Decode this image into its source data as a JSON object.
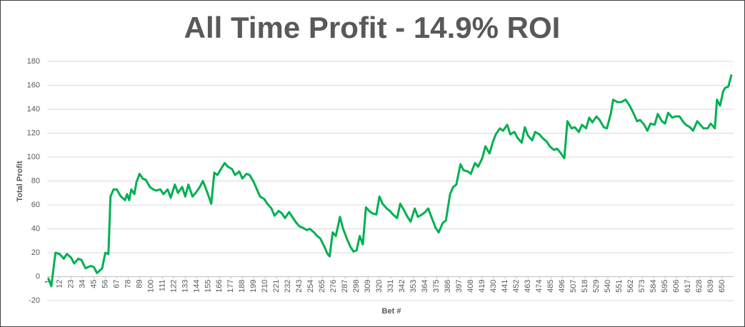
{
  "chart_data": {
    "type": "line",
    "title": "All Time Profit - 14.9% ROI",
    "xlabel": "Bet #",
    "ylabel": "Total Profit",
    "grid": true,
    "xlim": [
      0,
      661
    ],
    "ylim": [
      -20,
      180
    ],
    "yticks": [
      -20,
      0,
      20,
      40,
      60,
      80,
      100,
      120,
      140,
      160,
      180
    ],
    "xticks": [
      1,
      12,
      23,
      34,
      45,
      56,
      67,
      78,
      89,
      100,
      111,
      122,
      133,
      144,
      155,
      166,
      177,
      188,
      199,
      210,
      221,
      232,
      243,
      254,
      265,
      276,
      287,
      298,
      309,
      320,
      331,
      342,
      353,
      364,
      375,
      386,
      397,
      408,
      419,
      430,
      441,
      452,
      463,
      474,
      485,
      496,
      507,
      518,
      529,
      540,
      551,
      562,
      573,
      584,
      595,
      606,
      617,
      628,
      639,
      650
    ],
    "series": [
      {
        "name": "Total Profit",
        "color": "#00b050",
        "x": [
          1,
          4,
          8,
          12,
          16,
          19,
          23,
          26,
          30,
          33,
          37,
          42,
          45,
          48,
          53,
          56,
          59,
          61,
          64,
          67,
          71,
          75,
          77,
          79,
          81,
          84,
          86,
          89,
          92,
          95,
          99,
          102,
          105,
          109,
          112,
          116,
          119,
          123,
          126,
          130,
          133,
          136,
          140,
          143,
          147,
          150,
          154,
          158,
          161,
          164,
          168,
          171,
          174,
          178,
          181,
          185,
          188,
          192,
          195,
          199,
          202,
          205,
          209,
          212,
          216,
          219,
          223,
          226,
          229,
          233,
          236,
          240,
          243,
          246,
          250,
          253,
          257,
          260,
          263,
          267,
          270,
          272,
          275,
          278,
          282,
          285,
          289,
          292,
          295,
          298,
          301,
          304,
          307,
          310,
          313,
          317,
          320,
          323,
          327,
          330,
          333,
          337,
          340,
          344,
          347,
          350,
          354,
          357,
          361,
          364,
          367,
          370,
          374,
          377,
          381,
          384,
          388,
          391,
          394,
          398,
          401,
          405,
          408,
          412,
          415,
          419,
          422,
          426,
          429,
          432,
          436,
          439,
          443,
          446,
          450,
          453,
          457,
          460,
          463,
          467,
          470,
          474,
          477,
          481,
          484,
          488,
          491,
          494,
          498,
          501,
          505,
          508,
          512,
          515,
          519,
          522,
          525,
          529,
          532,
          536,
          539,
          543,
          545,
          549,
          553,
          557,
          561,
          565,
          568,
          571,
          575,
          578,
          581,
          585,
          588,
          592,
          595,
          598,
          602,
          605,
          609,
          612,
          615,
          619,
          622,
          626,
          629,
          632,
          636,
          639,
          643,
          645,
          648,
          651,
          653,
          656,
          659
        ],
        "values": [
          -1,
          -8,
          20,
          19,
          15,
          19,
          16,
          11,
          15,
          14,
          7,
          9,
          8,
          3,
          7,
          20,
          19,
          67,
          73,
          73,
          67,
          64,
          69,
          64,
          73,
          69,
          79,
          86,
          82,
          81,
          75,
          73,
          72,
          73,
          69,
          73,
          66,
          77,
          70,
          75,
          67,
          77,
          67,
          70,
          75,
          80,
          71,
          61,
          87,
          85,
          91,
          95,
          92,
          90,
          85,
          88,
          82,
          86,
          85,
          79,
          73,
          67,
          65,
          61,
          57,
          51,
          55,
          53,
          49,
          54,
          50,
          45,
          42,
          41,
          39,
          40,
          37,
          34,
          32,
          25,
          19,
          17,
          37,
          34,
          50,
          40,
          31,
          25,
          21,
          22,
          34,
          27,
          58,
          55,
          53,
          52,
          67,
          61,
          57,
          55,
          52,
          49,
          61,
          55,
          50,
          46,
          57,
          50,
          52,
          54,
          57,
          50,
          41,
          37,
          45,
          47,
          69,
          75,
          77,
          94,
          89,
          88,
          86,
          95,
          92,
          99,
          109,
          103,
          112,
          119,
          124,
          122,
          127,
          119,
          121,
          116,
          112,
          125,
          118,
          114,
          121,
          119,
          116,
          113,
          109,
          106,
          107,
          104,
          99,
          130,
          124,
          125,
          121,
          127,
          124,
          133,
          129,
          134,
          131,
          125,
          124,
          137,
          148,
          146,
          146,
          148,
          143,
          136,
          130,
          131,
          127,
          122,
          128,
          127,
          136,
          130,
          128,
          137,
          133,
          134,
          134,
          130,
          127,
          125,
          122,
          130,
          127,
          124,
          124,
          128,
          124,
          148,
          143,
          155,
          158,
          159,
          169
        ]
      }
    ]
  }
}
